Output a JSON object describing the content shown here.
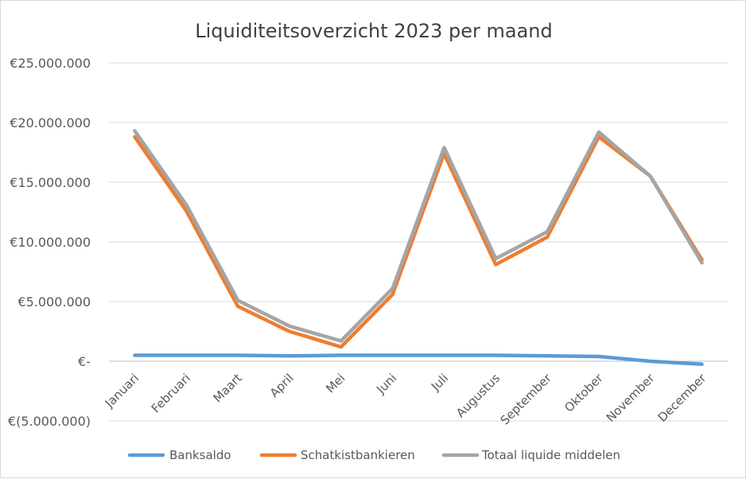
{
  "chart_data": {
    "type": "line",
    "title": "Liquiditeitsoverzicht 2023 per maand",
    "xlabel": "",
    "ylabel": "",
    "categories": [
      "Januari",
      "Februari",
      "Maart",
      "April",
      "Mei",
      "Juni",
      "Juli",
      "Augustus",
      "September",
      "Oktober",
      "November",
      "December"
    ],
    "ylim": [
      -5000000,
      25000000
    ],
    "yticks": [
      {
        "value": 25000000,
        "label": "€25.000.000"
      },
      {
        "value": 20000000,
        "label": "€20.000.000"
      },
      {
        "value": 15000000,
        "label": "€15.000.000"
      },
      {
        "value": 10000000,
        "label": "€10.000.000"
      },
      {
        "value": 5000000,
        "label": "€5.000.000"
      },
      {
        "value": 0,
        "label": "€-"
      },
      {
        "value": -5000000,
        "label": "€(5.000.000)"
      }
    ],
    "grid": true,
    "legend_position": "bottom",
    "series": [
      {
        "name": "Banksaldo",
        "color": "#5b9bd5",
        "values": [
          500000,
          500000,
          500000,
          450000,
          500000,
          500000,
          500000,
          500000,
          450000,
          400000,
          0,
          -250000
        ]
      },
      {
        "name": "Schatkistbankieren",
        "color": "#ed7d31",
        "values": [
          18800000,
          12600000,
          4600000,
          2500000,
          1200000,
          5600000,
          17400000,
          8100000,
          10400000,
          18800000,
          15500000,
          8500000
        ]
      },
      {
        "name": "Totaal liquide middelen",
        "color": "#a5a5a5",
        "values": [
          19300000,
          13100000,
          5100000,
          2950000,
          1700000,
          6100000,
          17900000,
          8600000,
          10850000,
          19200000,
          15500000,
          8250000
        ]
      }
    ]
  }
}
